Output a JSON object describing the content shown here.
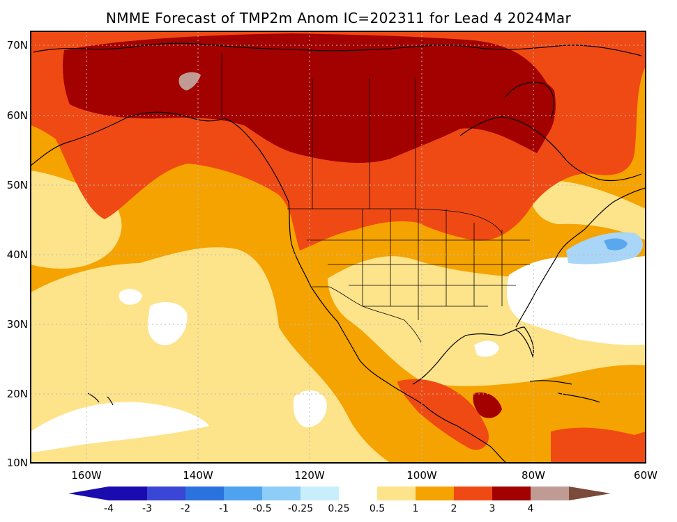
{
  "title": "NMME Forecast of TMP2m Anom IC=202311 for Lead 4 2024Mar",
  "map": {
    "lat_labels": [
      "70N",
      "60N",
      "50N",
      "40N",
      "30N",
      "20N",
      "10N"
    ],
    "lon_labels": [
      "160W",
      "140W",
      "120W",
      "100W",
      "80W",
      "60W"
    ],
    "colors": {
      "ocean_orange": "#f5a300",
      "land_orange": "#f5a300",
      "light_yellow": "#fde38a",
      "white": "#ffffff",
      "red_orange": "#f04a14",
      "dark_red": "#a30000",
      "brown": "#c09b94",
      "light_blue": "#a9d6f6",
      "blue": "#5aa7ee",
      "outline": "#000000"
    }
  },
  "colorbar": {
    "labels": [
      "-4",
      "-3",
      "-2",
      "-1",
      "-0.5",
      "-0.25",
      "0.25",
      "0.5",
      "1",
      "2",
      "3",
      "4"
    ],
    "colors": [
      "#1a0bb0",
      "#3a46d6",
      "#2a72dd",
      "#4ea2f0",
      "#8ecdf7",
      "#c8eefc",
      "#ffffff",
      "#fde38a",
      "#f5a300",
      "#f04a14",
      "#a30000",
      "#c09b94"
    ],
    "end_colors": {
      "left": "#1a0dad",
      "right": "#7b4a3a"
    }
  }
}
